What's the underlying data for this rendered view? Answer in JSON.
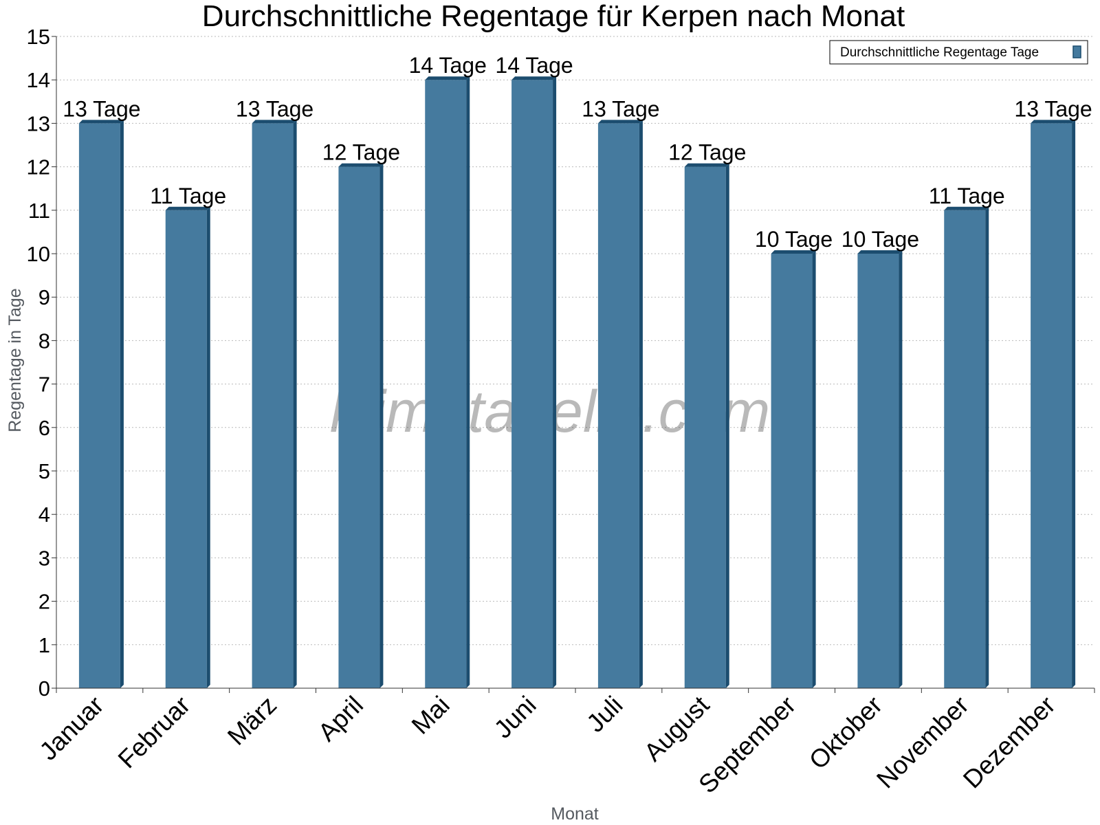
{
  "chart_data": {
    "type": "bar",
    "title": "Durchschnittliche Regentage für Kerpen nach Monat",
    "xlabel": "Monat",
    "ylabel": "Regentage in Tage",
    "ylim": [
      0,
      15
    ],
    "yticks": [
      "0",
      "1",
      "2",
      "3",
      "4",
      "5",
      "6",
      "7",
      "8",
      "9",
      "10",
      "11",
      "12",
      "13",
      "14",
      "15"
    ],
    "grid": true,
    "legend_position": "top-right",
    "categories": [
      "Januar",
      "Februar",
      "März",
      "April",
      "Mai",
      "Juni",
      "Juli",
      "August",
      "September",
      "Oktober",
      "November",
      "Dezember"
    ],
    "series": [
      {
        "name": "Durchschnittliche Regentage Tage",
        "values": [
          13,
          11,
          13,
          12,
          14,
          14,
          13,
          12,
          10,
          10,
          11,
          13
        ],
        "labels": [
          "13 Tage",
          "11 Tage",
          "13 Tage",
          "12 Tage",
          "14 Tage",
          "14 Tage",
          "13 Tage",
          "12 Tage",
          "10 Tage",
          "10 Tage",
          "11 Tage",
          "13 Tage"
        ],
        "color": "#457a9e",
        "side_color": "#1c4d6f"
      }
    ],
    "watermark": "klimatabelle.com"
  }
}
